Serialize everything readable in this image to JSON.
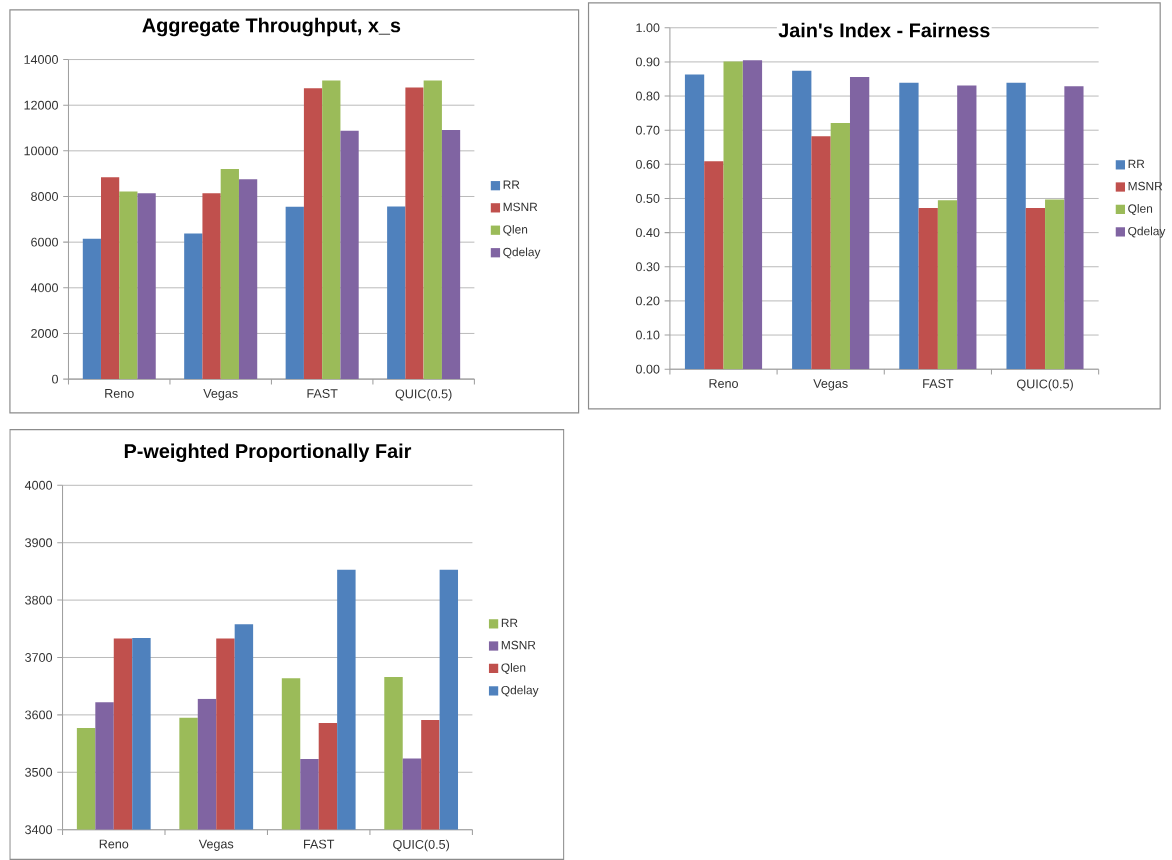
{
  "chart_data": [
    {
      "type": "bar",
      "title": "Aggregate Throughput, x_s",
      "categories": [
        "Reno",
        "Vegas",
        "FAST",
        "QUIC(0.5)"
      ],
      "series": [
        {
          "name": "RR",
          "color": "#4f81bd",
          "values": [
            6150,
            6380,
            7550,
            7560
          ]
        },
        {
          "name": "MSNR",
          "color": "#c0504d",
          "values": [
            8840,
            8140,
            12740,
            12770
          ]
        },
        {
          "name": "Qlen",
          "color": "#9bbb59",
          "values": [
            8220,
            9200,
            13080,
            13080
          ]
        },
        {
          "name": "Qdelay",
          "color": "#8064a2",
          "values": [
            8140,
            8750,
            10880,
            10910
          ]
        }
      ],
      "ylim": [
        0,
        14000
      ],
      "yticks": [
        0,
        2000,
        4000,
        6000,
        8000,
        10000,
        12000,
        14000
      ],
      "grid": "y",
      "legend": "right"
    },
    {
      "type": "bar",
      "title": "Jain's Index - Fairness",
      "categories": [
        "Reno",
        "Vegas",
        "FAST",
        "QUIC(0.5)"
      ],
      "series": [
        {
          "name": "RR",
          "color": "#4f81bd",
          "values": [
            0.863,
            0.875,
            0.839,
            0.839
          ]
        },
        {
          "name": "MSNR",
          "color": "#c0504d",
          "values": [
            0.609,
            0.682,
            0.472,
            0.472
          ]
        },
        {
          "name": "Qlen",
          "color": "#9bbb59",
          "values": [
            0.901,
            0.721,
            0.495,
            0.497
          ]
        },
        {
          "name": "Qdelay",
          "color": "#8064a2",
          "values": [
            0.905,
            0.856,
            0.831,
            0.829
          ]
        }
      ],
      "ylim": [
        0,
        1
      ],
      "yticks": [
        {
          "value": 0,
          "label": "0.00"
        },
        {
          "value": 0.1,
          "label": "0.10"
        },
        {
          "value": 0.2,
          "label": "0.20"
        },
        {
          "value": 0.3,
          "label": "0.30"
        },
        {
          "value": 0.4,
          "label": "0.40"
        },
        {
          "value": 0.5,
          "label": "0.50"
        },
        {
          "value": 0.6,
          "label": "0.60"
        },
        {
          "value": 0.7,
          "label": "0.70"
        },
        {
          "value": 0.8,
          "label": "0.80"
        },
        {
          "value": 0.9,
          "label": "0.90"
        },
        {
          "value": 1,
          "label": "1.00"
        }
      ],
      "grid": "y",
      "legend": "right"
    },
    {
      "type": "bar",
      "title": "P-weighted Proportionally Fair",
      "categories": [
        "Reno",
        "Vegas",
        "FAST",
        "QUIC(0.5)"
      ],
      "series": [
        {
          "name": "RR",
          "color": "#9bbb59",
          "values": [
            3577,
            3595,
            3664,
            3666
          ]
        },
        {
          "name": "MSNR",
          "color": "#8064a2",
          "values": [
            3622,
            3628,
            3523,
            3524
          ]
        },
        {
          "name": "Qlen",
          "color": "#c0504d",
          "values": [
            3733,
            3733,
            3586,
            3591
          ]
        },
        {
          "name": "Qdelay",
          "color": "#4f81bd",
          "values": [
            3734,
            3758,
            3853,
            3853
          ]
        }
      ],
      "ylim": [
        3400,
        4000
      ],
      "yticks": [
        3400,
        3500,
        3600,
        3700,
        3800,
        3900,
        4000
      ],
      "grid": "y",
      "legend": "right"
    }
  ]
}
